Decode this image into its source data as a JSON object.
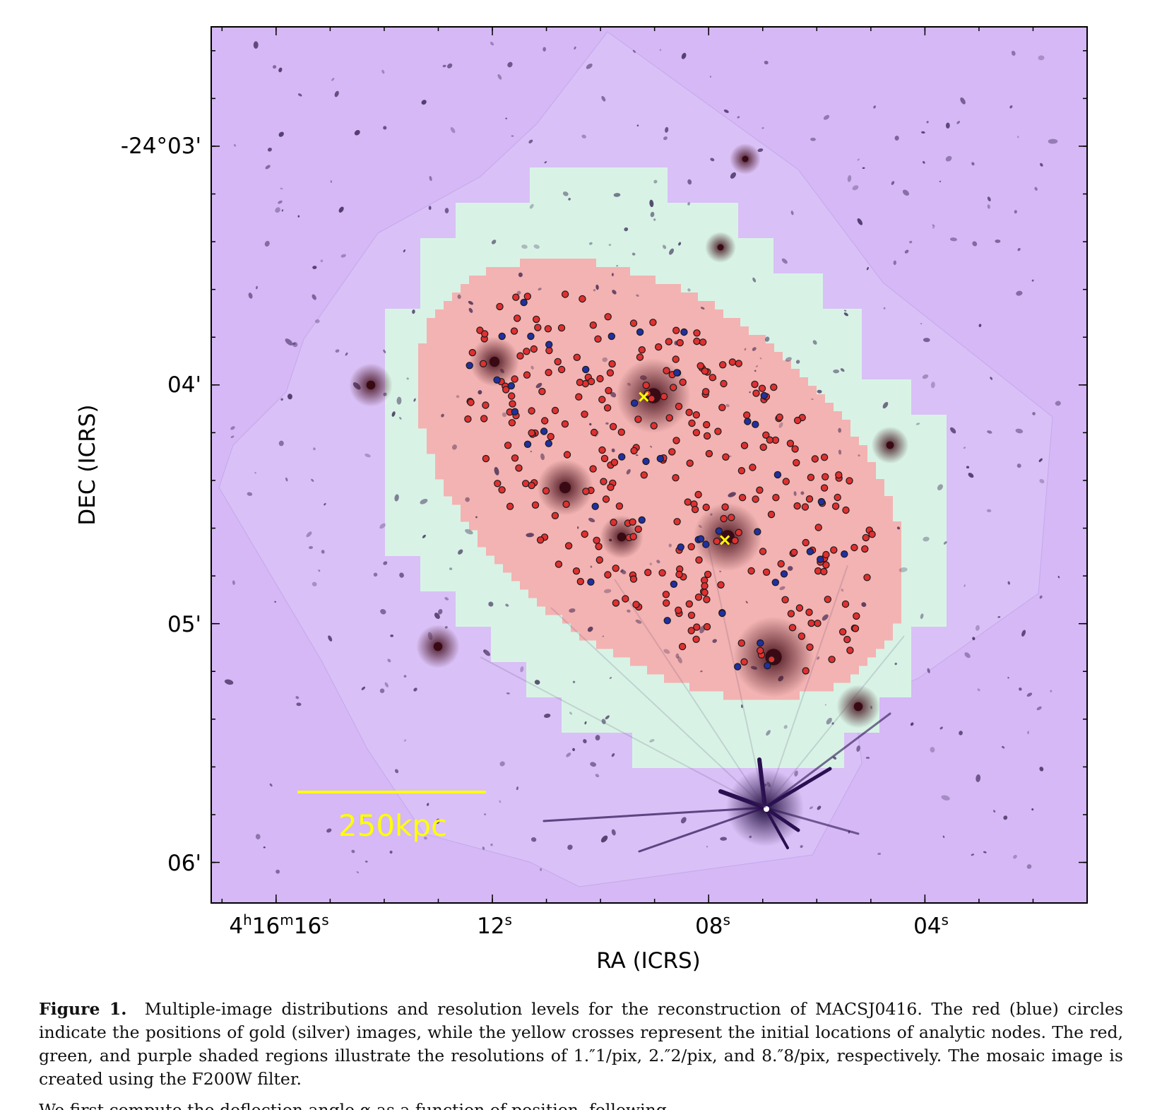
{
  "figure": {
    "xlabel": "RA (ICRS)",
    "ylabel": "DEC (ICRS)",
    "x_ticks": [
      {
        "h": "4",
        "m": "16",
        "s": "16"
      },
      {
        "s": "12"
      },
      {
        "s": "08"
      },
      {
        "s": "04"
      }
    ],
    "y_ticks": [
      "-24°03'",
      "04'",
      "05'",
      "06'"
    ],
    "scale_bar_label": "250kpc",
    "colors": {
      "low_res_region": "#d5b8f5",
      "mid_res_region": "#d8f3e6",
      "high_res_region": "#f3b3b2",
      "gold_image": "#e03030",
      "silver_image": "#2030a0",
      "analytic_node": "#ffff00",
      "scale_bar": "#ffff00"
    }
  },
  "chart_data": {
    "type": "scatter",
    "xlabel": "RA (ICRS)",
    "ylabel": "DEC (ICRS)",
    "x_tick_labels": [
      "4h16m16s",
      "12s",
      "08s",
      "04s"
    ],
    "y_tick_labels": [
      "-24°03'",
      "04'",
      "05'",
      "06'"
    ],
    "xlim_seconds": [
      17.2,
      1.0
    ],
    "ylim_arcmin": [
      2.5,
      6.17
    ],
    "series": [
      {
        "name": "gold",
        "color": "#e03030",
        "seed": 7,
        "count": 300
      },
      {
        "name": "silver",
        "color": "#2030a0",
        "seed": 19,
        "count": 45
      },
      {
        "name": "analytic nodes",
        "color": "#ffff00",
        "ra_s": [
          9.2,
          7.7
        ],
        "dec_arcmin": [
          4.05,
          4.65
        ]
      }
    ]
  },
  "caption": {
    "label": "Figure 1.",
    "text": "Multiple-image distributions and resolution levels for the reconstruction of MACSJ0416. The red (blue) circles indicate the positions of gold (silver) images, while the yellow crosses represent the initial locations of analytic nodes. The red, green, and purple shaded regions illustrate the resolutions of 1.″1/pix, 2.″2/pix, and 8.″8/pix, respectively. The mosaic image is created using the F200W filter."
  },
  "next_text": "We first compute the deflection angle α as a function of position, following"
}
